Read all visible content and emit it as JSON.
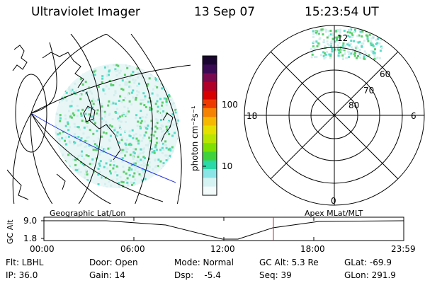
{
  "header": {
    "title": "Ultraviolet Imager",
    "date": "13 Sep 07",
    "time": "15:23:54 UT"
  },
  "colorbar": {
    "unit_label": "photon cm⁻²s⁻¹",
    "ticks": [
      "100",
      "10"
    ],
    "colors": [
      "#1a0530",
      "#3a0a55",
      "#7a0a50",
      "#b0002a",
      "#d80000",
      "#ee3a00",
      "#f58200",
      "#f6b800",
      "#e6e000",
      "#b8e600",
      "#7de000",
      "#3fd23c",
      "#2ad8a8",
      "#8ae6e6",
      "#d6f3f3",
      "#f4fbfb"
    ]
  },
  "polar_plot": {
    "mlt_labels": {
      "top": "12",
      "left": "18",
      "right": "6",
      "bottom": "0"
    },
    "lat_labels": [
      "60",
      "70",
      "80"
    ]
  },
  "labels": {
    "geographic": "Geographic Lat/Lon",
    "apex": "Apex MLat/MLT"
  },
  "altitude_plot": {
    "y_label": "GC Alt",
    "y_ticks": [
      "9.0",
      "1.8"
    ],
    "x_ticks": [
      "00:00",
      "06:00",
      "12:00",
      "18:00",
      "23:59"
    ]
  },
  "info": {
    "flt": "Flt: LBHL",
    "door": "Door: Open",
    "mode": "Mode: Normal",
    "gc_alt": "GC Alt: 5.3 Re",
    "glat": "GLat: -69.9",
    "ip": "IP: 36.0",
    "gain": "Gain: 14",
    "dsp": "Dsp:    -5.4",
    "seq": "Seq: 39",
    "glon": "GLon: 291.9"
  },
  "colors": {
    "speckle_light": "#d4eeee",
    "speckle_cyan": "#58dcc8",
    "speckle_green": "#5ccf6a",
    "track_blue": "#2233dd",
    "current_marker": "#cc2222"
  }
}
